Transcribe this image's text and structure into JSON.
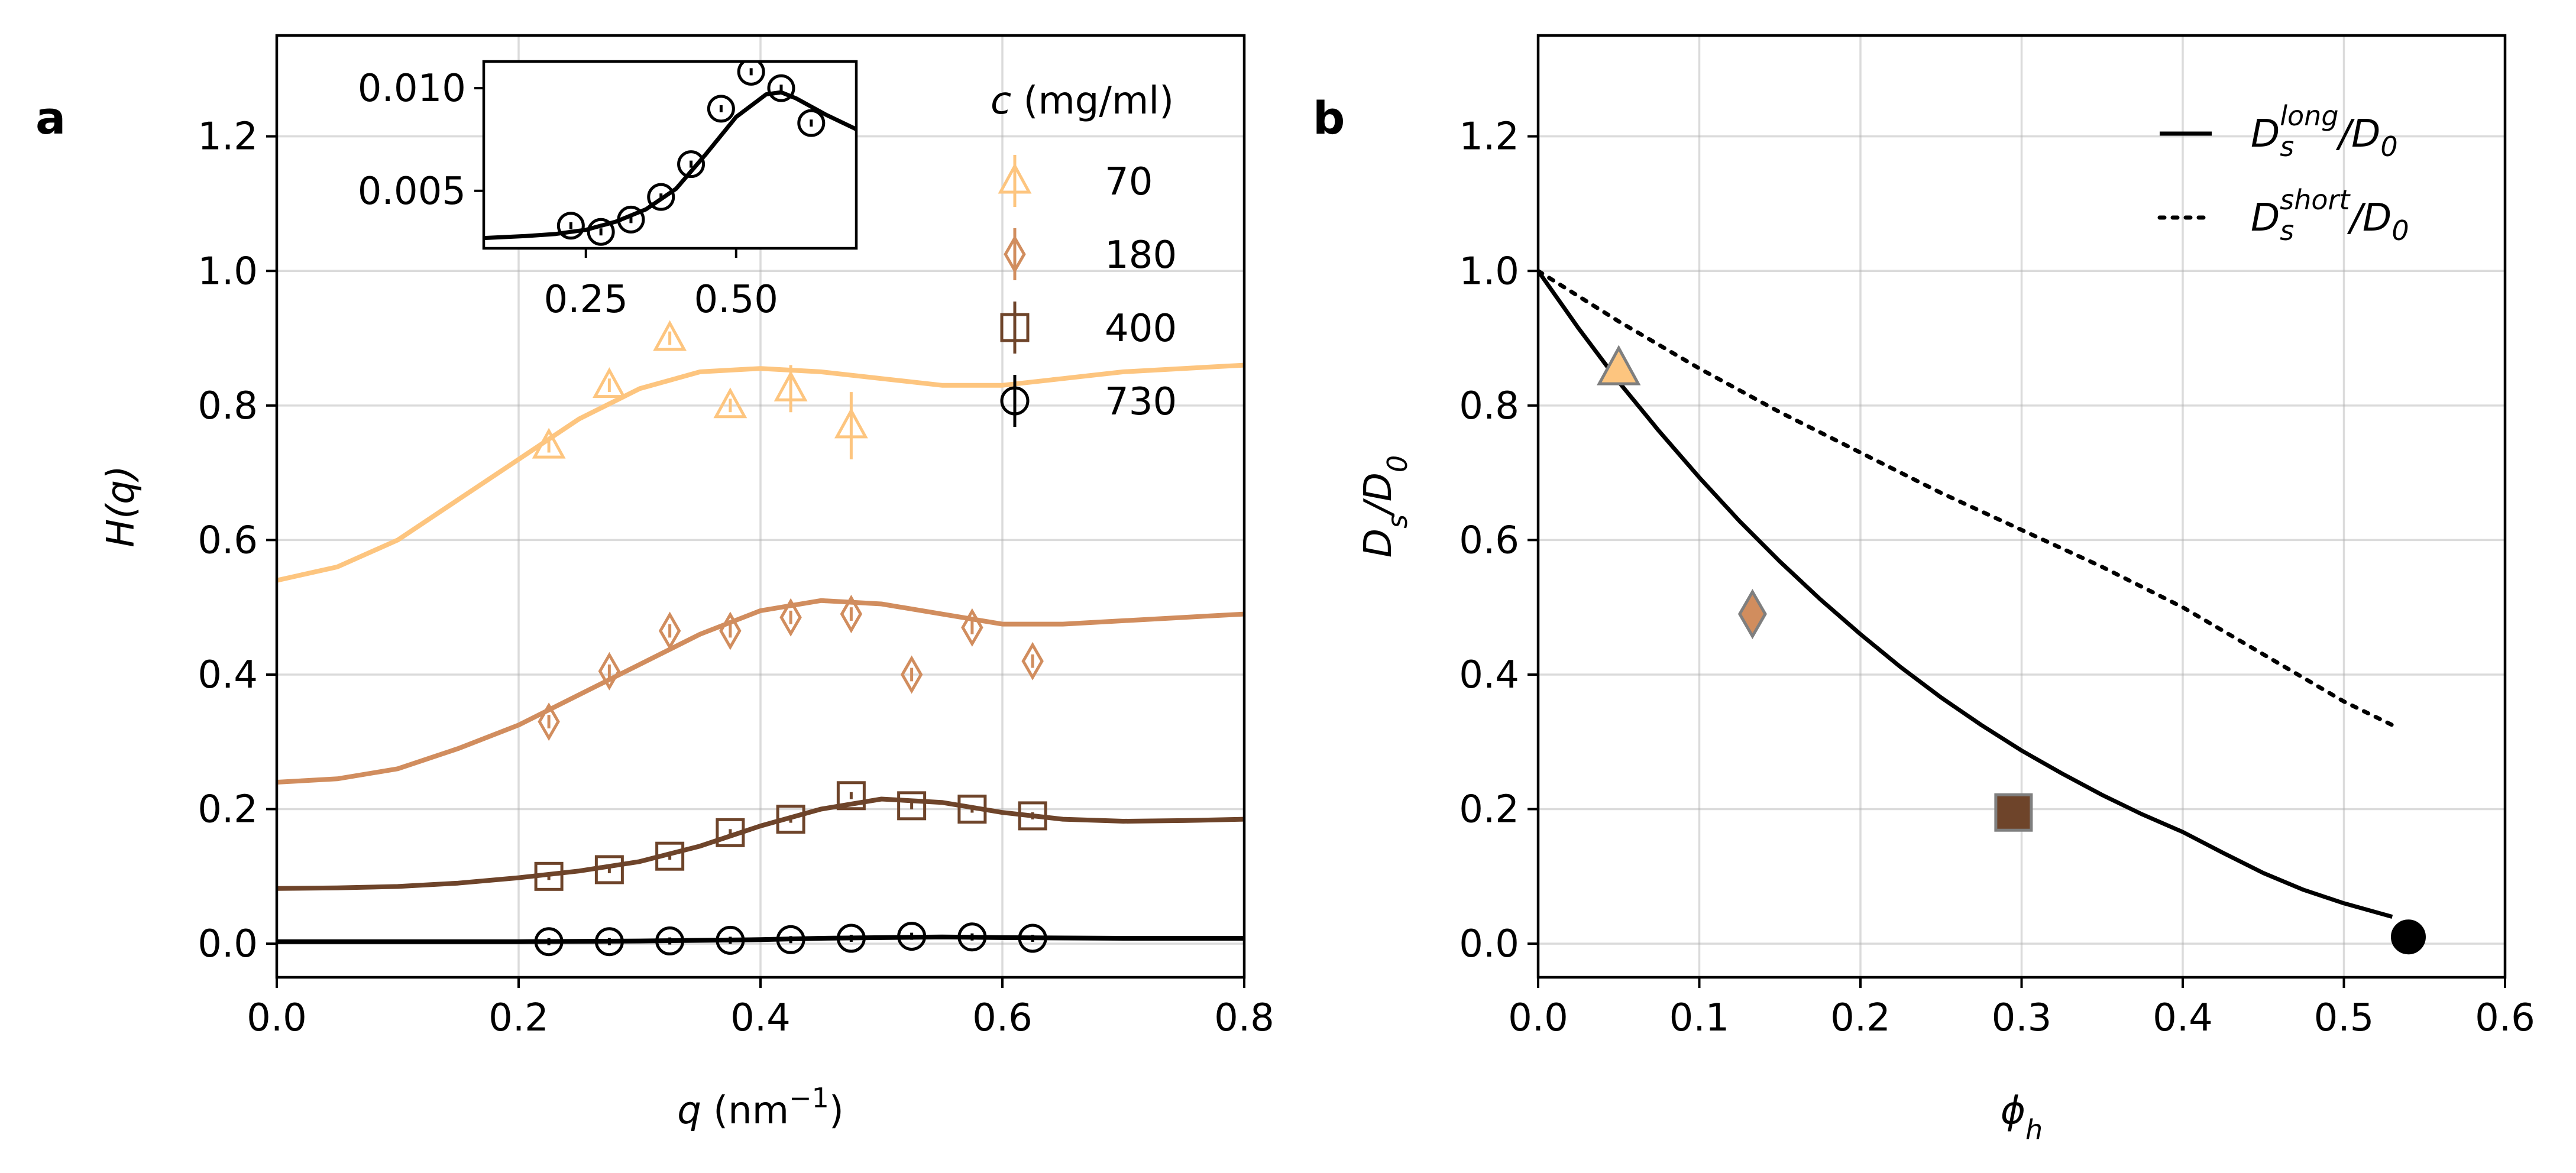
{
  "colors": {
    "c70": "#fdc57f",
    "c180": "#d18d5e",
    "c400": "#6e442a",
    "c730": "#000000",
    "markerEdgeB": "#7f7f7f"
  },
  "chart_data": [
    {
      "panel": "a",
      "type": "scatter",
      "xlabel": "q (nm⁻¹)",
      "xlabel_parts": {
        "main": "q",
        "pre": " (nm",
        "sup": "−1",
        "post": ")"
      },
      "ylabel": "H(q)",
      "xlim": [
        0.0,
        0.8
      ],
      "ylim": [
        -0.05,
        1.35
      ],
      "xticks": [
        0.0,
        0.2,
        0.4,
        0.6,
        0.8
      ],
      "xtick_labels": [
        "0.0",
        "0.2",
        "0.4",
        "0.6",
        "0.8"
      ],
      "yticks": [
        0.0,
        0.2,
        0.4,
        0.6,
        0.8,
        1.0,
        1.2
      ],
      "ytick_labels": [
        "0.0",
        "0.2",
        "0.4",
        "0.6",
        "0.8",
        "1.0",
        "1.2"
      ],
      "grid": true,
      "legend_title": "c (mg/ml)",
      "legend_title_parts": {
        "italic": "c",
        "rest": " (mg/ml)"
      },
      "legend_position": "top-right",
      "series": [
        {
          "name": "70",
          "marker": "triangle",
          "color_key": "c70",
          "points": [
            {
              "x": 0.225,
              "y": 0.74,
              "err": 0.01
            },
            {
              "x": 0.275,
              "y": 0.83,
              "err": 0.01
            },
            {
              "x": 0.325,
              "y": 0.9,
              "err": 0.01
            },
            {
              "x": 0.375,
              "y": 0.8,
              "err": 0.01
            },
            {
              "x": 0.425,
              "y": 0.825,
              "err": 0.035
            },
            {
              "x": 0.475,
              "y": 0.77,
              "err": 0.05
            }
          ],
          "fit": [
            [
              0.0,
              0.54
            ],
            [
              0.05,
              0.56
            ],
            [
              0.1,
              0.6
            ],
            [
              0.15,
              0.66
            ],
            [
              0.2,
              0.72
            ],
            [
              0.25,
              0.78
            ],
            [
              0.3,
              0.825
            ],
            [
              0.35,
              0.85
            ],
            [
              0.4,
              0.855
            ],
            [
              0.45,
              0.85
            ],
            [
              0.5,
              0.84
            ],
            [
              0.55,
              0.83
            ],
            [
              0.6,
              0.83
            ],
            [
              0.65,
              0.84
            ],
            [
              0.7,
              0.85
            ],
            [
              0.75,
              0.855
            ],
            [
              0.8,
              0.86
            ]
          ]
        },
        {
          "name": "180",
          "marker": "diamond",
          "color_key": "c180",
          "points": [
            {
              "x": 0.225,
              "y": 0.33,
              "err": 0.01
            },
            {
              "x": 0.275,
              "y": 0.405,
              "err": 0.01
            },
            {
              "x": 0.325,
              "y": 0.465,
              "err": 0.01
            },
            {
              "x": 0.375,
              "y": 0.465,
              "err": 0.01
            },
            {
              "x": 0.425,
              "y": 0.485,
              "err": 0.01
            },
            {
              "x": 0.475,
              "y": 0.49,
              "err": 0.01
            },
            {
              "x": 0.525,
              "y": 0.4,
              "err": 0.01
            },
            {
              "x": 0.575,
              "y": 0.47,
              "err": 0.01
            },
            {
              "x": 0.625,
              "y": 0.42,
              "err": 0.01
            }
          ],
          "fit": [
            [
              0.0,
              0.24
            ],
            [
              0.05,
              0.245
            ],
            [
              0.1,
              0.26
            ],
            [
              0.15,
              0.29
            ],
            [
              0.2,
              0.325
            ],
            [
              0.25,
              0.37
            ],
            [
              0.3,
              0.415
            ],
            [
              0.35,
              0.46
            ],
            [
              0.4,
              0.495
            ],
            [
              0.45,
              0.51
            ],
            [
              0.5,
              0.505
            ],
            [
              0.55,
              0.49
            ],
            [
              0.6,
              0.475
            ],
            [
              0.65,
              0.475
            ],
            [
              0.7,
              0.48
            ],
            [
              0.75,
              0.485
            ],
            [
              0.8,
              0.49
            ]
          ]
        },
        {
          "name": "400",
          "marker": "square",
          "color_key": "c400",
          "points": [
            {
              "x": 0.225,
              "y": 0.1,
              "err": 0.005
            },
            {
              "x": 0.275,
              "y": 0.11,
              "err": 0.005
            },
            {
              "x": 0.325,
              "y": 0.13,
              "err": 0.005
            },
            {
              "x": 0.375,
              "y": 0.165,
              "err": 0.005
            },
            {
              "x": 0.425,
              "y": 0.185,
              "err": 0.005
            },
            {
              "x": 0.475,
              "y": 0.22,
              "err": 0.005
            },
            {
              "x": 0.525,
              "y": 0.205,
              "err": 0.005
            },
            {
              "x": 0.575,
              "y": 0.2,
              "err": 0.005
            },
            {
              "x": 0.625,
              "y": 0.19,
              "err": 0.005
            }
          ],
          "fit": [
            [
              0.0,
              0.082
            ],
            [
              0.05,
              0.083
            ],
            [
              0.1,
              0.085
            ],
            [
              0.15,
              0.09
            ],
            [
              0.2,
              0.098
            ],
            [
              0.25,
              0.108
            ],
            [
              0.3,
              0.122
            ],
            [
              0.35,
              0.145
            ],
            [
              0.4,
              0.175
            ],
            [
              0.45,
              0.2
            ],
            [
              0.5,
              0.215
            ],
            [
              0.55,
              0.21
            ],
            [
              0.6,
              0.195
            ],
            [
              0.65,
              0.185
            ],
            [
              0.7,
              0.182
            ],
            [
              0.75,
              0.183
            ],
            [
              0.8,
              0.185
            ]
          ]
        },
        {
          "name": "730",
          "marker": "circle",
          "color_key": "c730",
          "points": [
            {
              "x": 0.225,
              "y": 0.003,
              "err": 0.003
            },
            {
              "x": 0.275,
              "y": 0.003,
              "err": 0.003
            },
            {
              "x": 0.325,
              "y": 0.004,
              "err": 0.003
            },
            {
              "x": 0.375,
              "y": 0.005,
              "err": 0.003
            },
            {
              "x": 0.425,
              "y": 0.006,
              "err": 0.003
            },
            {
              "x": 0.475,
              "y": 0.008,
              "err": 0.003
            },
            {
              "x": 0.525,
              "y": 0.011,
              "err": 0.003
            },
            {
              "x": 0.575,
              "y": 0.01,
              "err": 0.003
            },
            {
              "x": 0.625,
              "y": 0.008,
              "err": 0.003
            }
          ],
          "fit": [
            [
              0.0,
              0.003
            ],
            [
              0.2,
              0.003
            ],
            [
              0.3,
              0.004
            ],
            [
              0.4,
              0.006
            ],
            [
              0.45,
              0.008
            ],
            [
              0.5,
              0.009
            ],
            [
              0.55,
              0.01
            ],
            [
              0.6,
              0.009
            ],
            [
              0.7,
              0.008
            ],
            [
              0.8,
              0.008
            ]
          ]
        }
      ],
      "inset": {
        "xlim": [
          0.08,
          0.7
        ],
        "ylim": [
          0.0022,
          0.0113
        ],
        "xticks": [
          0.25,
          0.5
        ],
        "xtick_labels": [
          "0.25",
          "0.50"
        ],
        "yticks": [
          0.005,
          0.01
        ],
        "ytick_labels": [
          "0.005",
          "0.010"
        ],
        "points": [
          {
            "x": 0.225,
            "y": 0.0033
          },
          {
            "x": 0.275,
            "y": 0.003
          },
          {
            "x": 0.325,
            "y": 0.0036
          },
          {
            "x": 0.375,
            "y": 0.0047
          },
          {
            "x": 0.425,
            "y": 0.0063
          },
          {
            "x": 0.475,
            "y": 0.009
          },
          {
            "x": 0.525,
            "y": 0.0108
          },
          {
            "x": 0.575,
            "y": 0.01
          },
          {
            "x": 0.625,
            "y": 0.0083
          }
        ],
        "fit": [
          [
            0.08,
            0.0027
          ],
          [
            0.15,
            0.0028
          ],
          [
            0.2,
            0.0029
          ],
          [
            0.25,
            0.0031
          ],
          [
            0.3,
            0.0035
          ],
          [
            0.35,
            0.0041
          ],
          [
            0.4,
            0.0051
          ],
          [
            0.45,
            0.0068
          ],
          [
            0.5,
            0.0086
          ],
          [
            0.55,
            0.0097
          ],
          [
            0.575,
            0.0098
          ],
          [
            0.6,
            0.0095
          ],
          [
            0.65,
            0.0087
          ],
          [
            0.7,
            0.008
          ]
        ]
      }
    },
    {
      "panel": "b",
      "type": "line",
      "xlabel": "ϕh",
      "xlabel_parts": {
        "main": "ϕ",
        "sub": "h"
      },
      "ylabel": "Ds/D0",
      "ylabel_parts": {
        "a": "D",
        "a_sub": "s",
        "slash": "/",
        "b": "D",
        "b_sub": "0"
      },
      "xlim": [
        0.0,
        0.6
      ],
      "ylim": [
        -0.05,
        1.35
      ],
      "xticks": [
        0.0,
        0.1,
        0.2,
        0.3,
        0.4,
        0.5,
        0.6
      ],
      "xtick_labels": [
        "0.0",
        "0.1",
        "0.2",
        "0.3",
        "0.4",
        "0.5",
        "0.6"
      ],
      "yticks": [
        0.0,
        0.2,
        0.4,
        0.6,
        0.8,
        1.0,
        1.2
      ],
      "ytick_labels": [
        "0.0",
        "0.2",
        "0.4",
        "0.6",
        "0.8",
        "1.0",
        "1.2"
      ],
      "grid": true,
      "legend_position": "top-right",
      "series": [
        {
          "name": "Ds^long/D0",
          "name_parts": {
            "a": "D",
            "sub": "s",
            "sup": "long",
            "rest": "/",
            "b": "D",
            "b_sub": "0"
          },
          "style": "solid",
          "x": [
            0.0,
            0.025,
            0.05,
            0.075,
            0.1,
            0.125,
            0.15,
            0.175,
            0.2,
            0.225,
            0.25,
            0.275,
            0.3,
            0.325,
            0.35,
            0.375,
            0.4,
            0.425,
            0.45,
            0.475,
            0.5,
            0.53
          ],
          "y": [
            1.0,
            0.915,
            0.835,
            0.762,
            0.693,
            0.628,
            0.568,
            0.512,
            0.46,
            0.411,
            0.366,
            0.325,
            0.287,
            0.253,
            0.221,
            0.192,
            0.166,
            0.135,
            0.105,
            0.08,
            0.06,
            0.04
          ]
        },
        {
          "name": "Ds^short/D0",
          "name_parts": {
            "a": "D",
            "sub": "s",
            "sup": "short",
            "rest": "/",
            "b": "D",
            "b_sub": "0"
          },
          "style": "dotted",
          "x": [
            0.0,
            0.05,
            0.1,
            0.15,
            0.2,
            0.25,
            0.3,
            0.35,
            0.4,
            0.45,
            0.5,
            0.53
          ],
          "y": [
            1.0,
            0.925,
            0.855,
            0.79,
            0.73,
            0.67,
            0.615,
            0.56,
            0.5,
            0.43,
            0.36,
            0.325
          ]
        }
      ],
      "markers": [
        {
          "label": "70",
          "x": 0.05,
          "y": 0.855,
          "marker": "triangle",
          "color_key": "c70"
        },
        {
          "label": "180",
          "x": 0.133,
          "y": 0.49,
          "marker": "diamond",
          "color_key": "c180"
        },
        {
          "label": "400",
          "x": 0.295,
          "y": 0.195,
          "marker": "square",
          "color_key": "c400"
        },
        {
          "label": "730",
          "x": 0.54,
          "y": 0.01,
          "marker": "circle",
          "color_key": "c730"
        }
      ]
    }
  ]
}
